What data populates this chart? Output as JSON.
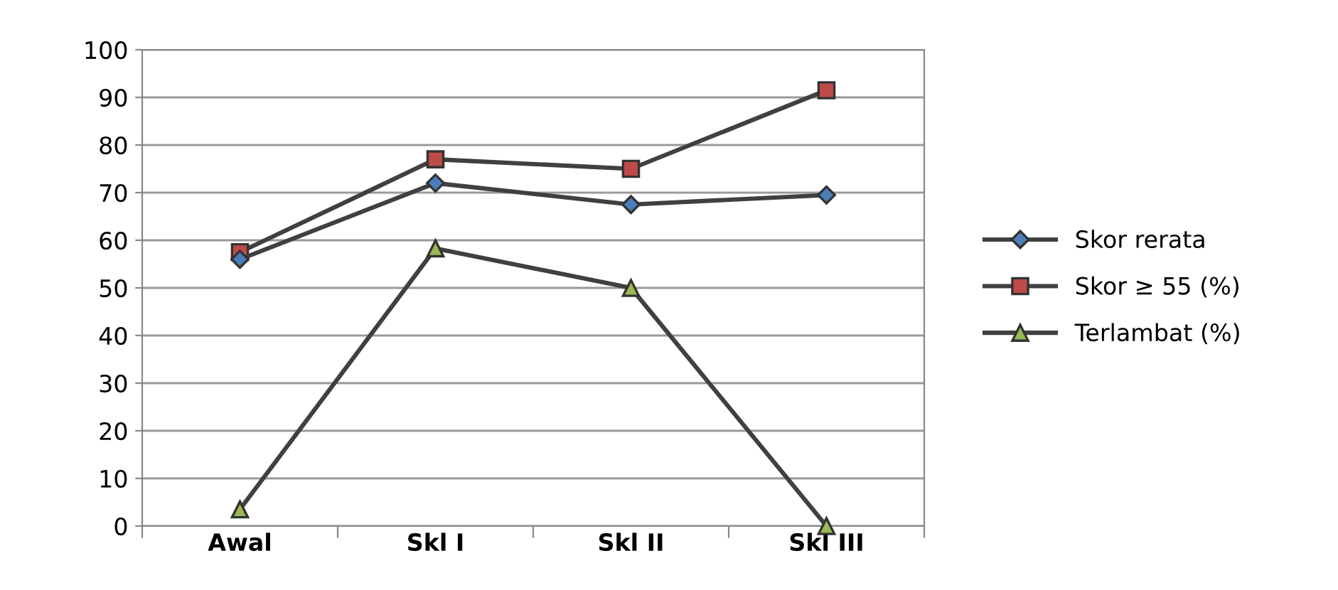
{
  "chart_data": {
    "type": "line",
    "categories": [
      "Awal",
      "Skl I",
      "Skl II",
      "Skl III"
    ],
    "series": [
      {
        "name": "Skor rerata",
        "color": "#4a7ebb",
        "marker": "diamond",
        "values": [
          56,
          72,
          67.5,
          69.5
        ]
      },
      {
        "name": "Skor ≥ 55 (%)",
        "color": "#be4b48",
        "marker": "square",
        "values": [
          57.5,
          77,
          75,
          91.5
        ]
      },
      {
        "name": "Terlambat (%)",
        "color": "#98b954",
        "marker": "triangle",
        "values": [
          3.5,
          58.3,
          50,
          0
        ]
      }
    ],
    "ylim": [
      0,
      100
    ],
    "yticks": [
      0,
      10,
      20,
      30,
      40,
      50,
      60,
      70,
      80,
      90,
      100
    ],
    "grid": "y",
    "legend": "right",
    "line_style": "solid"
  }
}
